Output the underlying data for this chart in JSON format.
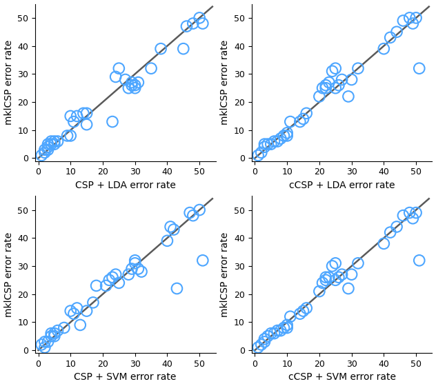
{
  "ylabel": "mklCSP error rate",
  "marker_color": "#4DA6FF",
  "line_color": "#5A5A5A",
  "marker_size": 6,
  "marker_lw": 1.5,
  "line_lw": 1.8,
  "xlim": [
    -1,
    55
  ],
  "ylim": [
    -1,
    55
  ],
  "xticks": [
    0,
    10,
    20,
    30,
    40,
    50
  ],
  "yticks": [
    0,
    10,
    20,
    30,
    40,
    50
  ],
  "tick_fontsize": 9,
  "label_fontsize": 10,
  "plots": [
    {
      "xlabel": "CSP + LDA error rate",
      "x": [
        1,
        2,
        2,
        3,
        3,
        3,
        4,
        4,
        5,
        5,
        6,
        9,
        10,
        10,
        11,
        12,
        14,
        15,
        15,
        23,
        24,
        25,
        27,
        28,
        29,
        29,
        30,
        30,
        31,
        35,
        38,
        45,
        46,
        48,
        50,
        51
      ],
      "y": [
        1,
        2,
        3,
        3,
        4,
        5,
        5,
        6,
        5,
        6,
        6,
        8,
        8,
        15,
        13,
        15,
        16,
        16,
        12,
        13,
        29,
        32,
        28,
        25,
        26,
        27,
        25,
        26,
        27,
        32,
        39,
        39,
        47,
        48,
        50,
        48
      ]
    },
    {
      "xlabel": "cCSP + LDA error rate",
      "x": [
        1,
        2,
        3,
        3,
        4,
        5,
        6,
        7,
        8,
        9,
        10,
        10,
        11,
        14,
        15,
        16,
        20,
        21,
        22,
        22,
        23,
        24,
        25,
        25,
        26,
        27,
        29,
        30,
        32,
        40,
        42,
        44,
        46,
        48,
        49,
        50,
        51
      ],
      "y": [
        1,
        2,
        4,
        5,
        5,
        5,
        6,
        6,
        7,
        8,
        8,
        9,
        13,
        13,
        14,
        16,
        22,
        25,
        25,
        26,
        27,
        31,
        32,
        25,
        26,
        28,
        22,
        28,
        32,
        39,
        43,
        45,
        49,
        50,
        48,
        50,
        32
      ]
    },
    {
      "xlabel": "CSP + SVM error rate",
      "x": [
        1,
        2,
        2,
        3,
        4,
        4,
        5,
        5,
        6,
        8,
        10,
        11,
        12,
        13,
        15,
        17,
        18,
        21,
        22,
        23,
        24,
        25,
        28,
        29,
        30,
        30,
        31,
        32,
        40,
        41,
        42,
        43,
        47,
        48,
        50,
        51
      ],
      "y": [
        2,
        3,
        1,
        3,
        5,
        6,
        5,
        6,
        7,
        8,
        14,
        13,
        15,
        9,
        14,
        17,
        23,
        23,
        25,
        26,
        27,
        24,
        27,
        29,
        31,
        32,
        29,
        28,
        39,
        44,
        43,
        22,
        49,
        48,
        50,
        32
      ]
    },
    {
      "xlabel": "cCSP + SVM error rate",
      "x": [
        1,
        2,
        3,
        3,
        4,
        5,
        6,
        7,
        8,
        9,
        10,
        10,
        11,
        14,
        15,
        16,
        20,
        21,
        22,
        22,
        23,
        24,
        25,
        25,
        26,
        27,
        29,
        30,
        32,
        40,
        42,
        44,
        46,
        48,
        49,
        50,
        51
      ],
      "y": [
        1,
        2,
        3,
        4,
        5,
        6,
        6,
        7,
        7,
        8,
        8,
        9,
        12,
        13,
        14,
        15,
        21,
        24,
        25,
        26,
        26,
        30,
        31,
        25,
        26,
        27,
        22,
        27,
        31,
        38,
        42,
        44,
        48,
        49,
        47,
        49,
        32
      ]
    }
  ]
}
